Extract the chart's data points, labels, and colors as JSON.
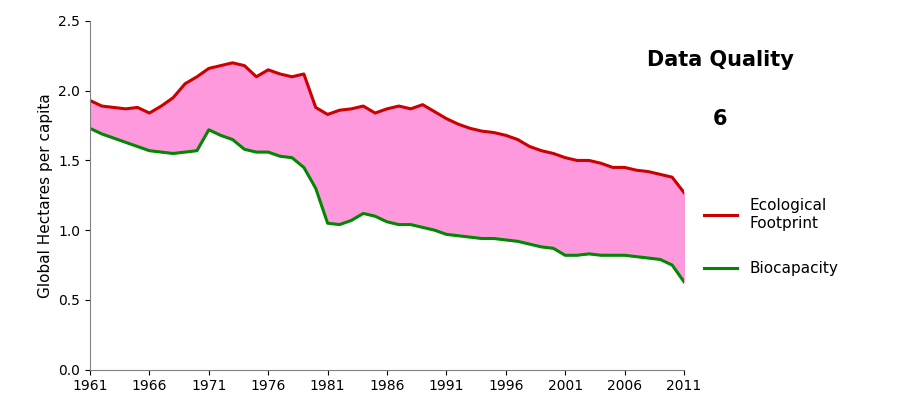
{
  "years": [
    1961,
    1962,
    1963,
    1964,
    1965,
    1966,
    1967,
    1968,
    1969,
    1970,
    1971,
    1972,
    1973,
    1974,
    1975,
    1976,
    1977,
    1978,
    1979,
    1980,
    1981,
    1982,
    1983,
    1984,
    1985,
    1986,
    1987,
    1988,
    1989,
    1990,
    1991,
    1992,
    1993,
    1994,
    1995,
    1996,
    1997,
    1998,
    1999,
    2000,
    2001,
    2002,
    2003,
    2004,
    2005,
    2006,
    2007,
    2008,
    2009,
    2010,
    2011
  ],
  "ecological_footprint": [
    1.93,
    1.89,
    1.88,
    1.87,
    1.88,
    1.84,
    1.89,
    1.95,
    2.05,
    2.1,
    2.16,
    2.18,
    2.2,
    2.18,
    2.1,
    2.15,
    2.12,
    2.1,
    2.12,
    1.88,
    1.83,
    1.86,
    1.87,
    1.89,
    1.84,
    1.87,
    1.89,
    1.87,
    1.9,
    1.85,
    1.8,
    1.76,
    1.73,
    1.71,
    1.7,
    1.68,
    1.65,
    1.6,
    1.57,
    1.55,
    1.52,
    1.5,
    1.5,
    1.48,
    1.45,
    1.45,
    1.43,
    1.42,
    1.4,
    1.38,
    1.27
  ],
  "biocapacity": [
    1.73,
    1.69,
    1.66,
    1.63,
    1.6,
    1.57,
    1.56,
    1.55,
    1.56,
    1.57,
    1.72,
    1.68,
    1.65,
    1.58,
    1.56,
    1.56,
    1.53,
    1.52,
    1.45,
    1.3,
    1.05,
    1.04,
    1.07,
    1.12,
    1.1,
    1.06,
    1.04,
    1.04,
    1.02,
    1.0,
    0.97,
    0.96,
    0.95,
    0.94,
    0.94,
    0.93,
    0.92,
    0.9,
    0.88,
    0.87,
    0.82,
    0.82,
    0.83,
    0.82,
    0.82,
    0.82,
    0.81,
    0.8,
    0.79,
    0.75,
    0.63
  ],
  "fill_color": "#FF99DD",
  "fill_alpha": 1.0,
  "ef_color": "#CC0000",
  "bio_color": "#008800",
  "line_width": 2.2,
  "ylabel": "Global Hectares per capita",
  "ylim": [
    0.0,
    2.5
  ],
  "yticks": [
    0.0,
    0.5,
    1.0,
    1.5,
    2.0,
    2.5
  ],
  "xtick_years": [
    1961,
    1966,
    1971,
    1976,
    1981,
    1986,
    1991,
    1996,
    2001,
    2006,
    2011
  ],
  "annotation_title": "Data Quality",
  "annotation_value": "6",
  "legend_ef": "Ecological\nFootprint",
  "legend_bio": "Biocapacity",
  "label_fontsize": 11,
  "tick_fontsize": 10,
  "annot_fontsize": 15
}
